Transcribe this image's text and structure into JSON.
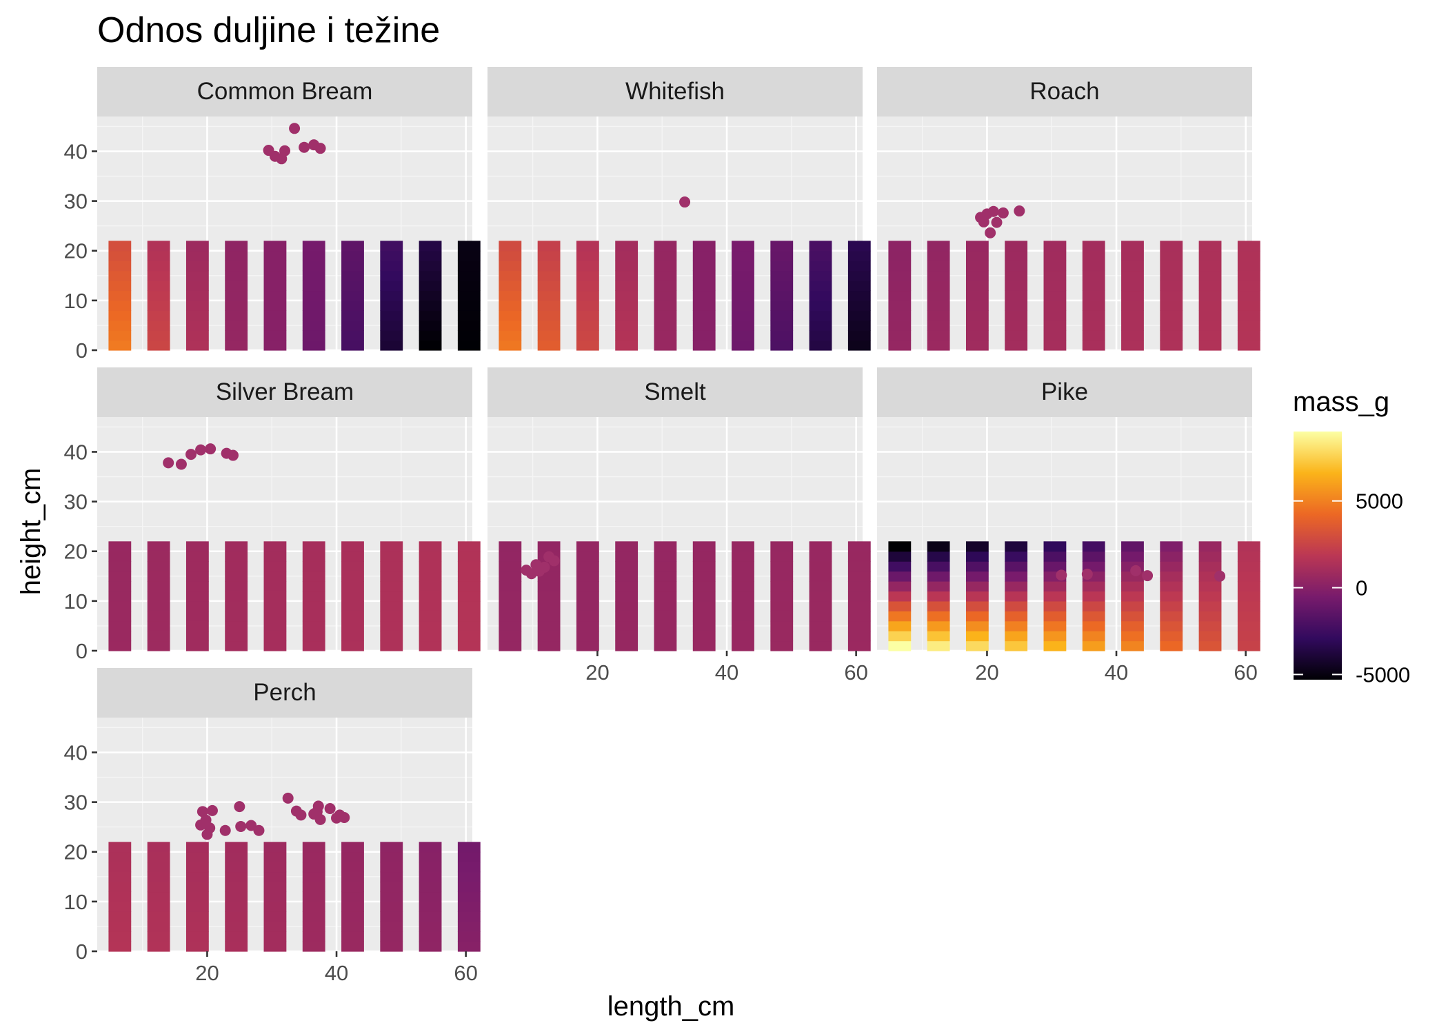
{
  "chart_data": {
    "type": "scatter",
    "title": "Odnos duljine i težine",
    "xlabel": "length_cm",
    "ylabel": "height_cm",
    "xlim": [
      3,
      61
    ],
    "ylim": [
      0,
      47
    ],
    "x_ticks": [
      20,
      40,
      60
    ],
    "y_ticks": [
      0,
      10,
      20,
      30,
      40
    ],
    "grid": true,
    "legend": {
      "title": "mass_g",
      "position": "right",
      "range": [
        -5300,
        9000
      ],
      "ticks": [
        5000,
        0,
        -5000
      ],
      "colors": [
        "#000004",
        "#320A5E",
        "#781B6C",
        "#BB3754",
        "#EC6824",
        "#FBB41A",
        "#FCFFA4"
      ]
    },
    "background_layer": {
      "description": "colour-tiled columns spanning height 0–22 in every panel",
      "column_centers": [
        6.5,
        12.5,
        18.5,
        24.5,
        30.5,
        36.5,
        42.5,
        48.5,
        54.5,
        60.5
      ],
      "column_width": 3.5,
      "y_range": [
        0,
        22
      ],
      "rows": 11
    },
    "panels": [
      {
        "species": "Common Bream",
        "points": [
          [
            29.5,
            40.2
          ],
          [
            30.5,
            39.0
          ],
          [
            31.5,
            38.5
          ],
          [
            32.0,
            40.1
          ],
          [
            33.5,
            44.6
          ],
          [
            35.0,
            40.8
          ],
          [
            36.5,
            41.3
          ],
          [
            37.5,
            40.6
          ]
        ],
        "tile_top": [
          3000,
          1500,
          800,
          300,
          0,
          -600,
          -1400,
          -2400,
          -3600,
          -4900
        ],
        "tile_bottom": [
          4800,
          2600,
          1400,
          500,
          0,
          -900,
          -2200,
          -4000,
          -5300,
          -5300
        ]
      },
      {
        "species": "Whitefish",
        "points": [
          [
            33.5,
            29.8
          ]
        ],
        "tile_top": [
          2800,
          2300,
          1600,
          1000,
          500,
          0,
          -500,
          -1100,
          -2100,
          -3300
        ],
        "tile_bottom": [
          4700,
          3700,
          2700,
          1600,
          600,
          0,
          -900,
          -2000,
          -3600,
          -4700
        ]
      },
      {
        "species": "Roach",
        "points": [
          [
            19.0,
            26.7
          ],
          [
            19.5,
            25.8
          ],
          [
            20.0,
            27.4
          ],
          [
            20.5,
            23.6
          ],
          [
            21.0,
            27.9
          ],
          [
            21.5,
            25.7
          ],
          [
            22.5,
            27.6
          ],
          [
            25.0,
            28.0
          ]
        ],
        "tile_top": [
          200,
          400,
          600,
          750,
          900,
          1000,
          1100,
          1200,
          1300,
          1400
        ],
        "tile_bottom": [
          500,
          700,
          900,
          1000,
          1100,
          1200,
          1300,
          1400,
          1500,
          1600
        ]
      },
      {
        "species": "Silver Bream",
        "points": [
          [
            14.0,
            37.8
          ],
          [
            16.0,
            37.5
          ],
          [
            17.5,
            39.5
          ],
          [
            19.0,
            40.4
          ],
          [
            20.5,
            40.6
          ],
          [
            23.0,
            39.7
          ],
          [
            24.0,
            39.3
          ]
        ],
        "tile_top": [
          600,
          700,
          800,
          900,
          1000,
          1100,
          1200,
          1300,
          1400,
          1500
        ],
        "tile_bottom": [
          700,
          800,
          900,
          1000,
          1100,
          1200,
          1300,
          1400,
          1500,
          1600
        ]
      },
      {
        "species": "Smelt",
        "points": [
          [
            9.0,
            16.2
          ],
          [
            9.8,
            15.5
          ],
          [
            10.5,
            17.3
          ],
          [
            11.0,
            16.0
          ],
          [
            11.8,
            16.8
          ],
          [
            12.5,
            18.9
          ],
          [
            13.3,
            18.1
          ]
        ],
        "tile_top": [
          400,
          400,
          450,
          450,
          500,
          500,
          550,
          550,
          600,
          600
        ],
        "tile_bottom": [
          500,
          500,
          500,
          550,
          550,
          600,
          600,
          650,
          650,
          700
        ]
      },
      {
        "species": "Pike",
        "points": [
          [
            31.5,
            15.2
          ],
          [
            35.5,
            15.4
          ],
          [
            43.0,
            16.1
          ],
          [
            44.8,
            15.1
          ],
          [
            56.0,
            15.0
          ]
        ],
        "tile_top": [
          -5300,
          -4800,
          -4300,
          -3800,
          -3000,
          -2300,
          -1300,
          -300,
          600,
          1500
        ],
        "tile_bottom": [
          9000,
          8400,
          7800,
          7200,
          6600,
          5900,
          5100,
          4200,
          3300,
          2400
        ]
      },
      {
        "species": "Perch",
        "points": [
          [
            19.0,
            25.4
          ],
          [
            19.3,
            28.1
          ],
          [
            19.8,
            26.4
          ],
          [
            20.0,
            23.5
          ],
          [
            20.4,
            24.8
          ],
          [
            20.8,
            28.3
          ],
          [
            22.8,
            24.3
          ],
          [
            25.0,
            29.1
          ],
          [
            25.2,
            25.1
          ],
          [
            26.8,
            25.3
          ],
          [
            28.0,
            24.3
          ],
          [
            32.5,
            30.8
          ],
          [
            33.8,
            28.2
          ],
          [
            34.5,
            27.4
          ],
          [
            36.5,
            27.6
          ],
          [
            37.0,
            28.1
          ],
          [
            37.2,
            29.2
          ],
          [
            37.5,
            26.5
          ],
          [
            39.0,
            28.7
          ],
          [
            40.0,
            26.8
          ],
          [
            40.5,
            27.4
          ],
          [
            41.2,
            26.9
          ]
        ],
        "tile_top": [
          1300,
          1200,
          1100,
          950,
          800,
          650,
          500,
          300,
          0,
          -700
        ],
        "tile_bottom": [
          1600,
          1500,
          1400,
          1200,
          1000,
          800,
          650,
          500,
          300,
          0
        ]
      }
    ]
  }
}
